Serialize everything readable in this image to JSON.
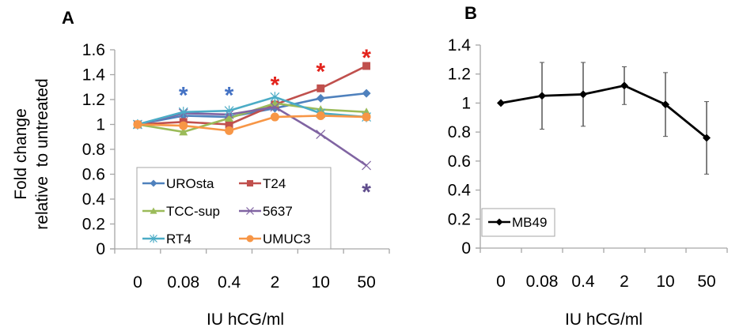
{
  "chart_data": [
    {
      "panel": "A",
      "type": "line",
      "title": "",
      "xlabel": "IU hCG/ml",
      "ylabel_lines": [
        "Fold change",
        "relative  to untreated"
      ],
      "categories": [
        "0",
        "0.08",
        "0.4",
        "2",
        "10",
        "50"
      ],
      "ylim": [
        0,
        1.6
      ],
      "yticks": [
        "0",
        "0.2",
        "0.4",
        "0.6",
        "0.8",
        "1",
        "1.2",
        "1.4",
        "1.6"
      ],
      "grid": false,
      "legend_position": "bottom-left inside",
      "series": [
        {
          "name": "UROsta",
          "color": "#4F81BD",
          "marker": "diamond",
          "values": [
            1.0,
            1.07,
            1.06,
            1.13,
            1.21,
            1.25
          ]
        },
        {
          "name": "T24",
          "color": "#C0504D",
          "marker": "square",
          "values": [
            1.0,
            1.02,
            1.0,
            1.16,
            1.29,
            1.47
          ]
        },
        {
          "name": "TCC-sup",
          "color": "#9BBB59",
          "marker": "triangle",
          "values": [
            1.0,
            0.94,
            1.05,
            1.17,
            1.12,
            1.1
          ]
        },
        {
          "name": "5637",
          "color": "#8064A2",
          "marker": "x",
          "values": [
            1.0,
            1.09,
            1.08,
            1.14,
            0.92,
            0.67
          ]
        },
        {
          "name": "RT4",
          "color": "#4BACC6",
          "marker": "star",
          "values": [
            1.0,
            1.1,
            1.11,
            1.22,
            1.09,
            1.06
          ]
        },
        {
          "name": "UMUC3",
          "color": "#F79646",
          "marker": "circle",
          "values": [
            1.0,
            0.99,
            0.95,
            1.06,
            1.07,
            1.06
          ]
        }
      ],
      "annotations": [
        {
          "text": "*",
          "category": "0.08",
          "y": 1.3,
          "color": "#4472C4"
        },
        {
          "text": "*",
          "category": "0.4",
          "y": 1.3,
          "color": "#4472C4"
        },
        {
          "text": "*",
          "category": "2",
          "y": 1.38,
          "color": "#E3231C"
        },
        {
          "text": "*",
          "category": "10",
          "y": 1.49,
          "color": "#E3231C"
        },
        {
          "text": "*",
          "category": "50",
          "y": 1.6,
          "color": "#E3231C"
        },
        {
          "text": "*",
          "category": "50",
          "y": 0.52,
          "color": "#5F4C8C"
        }
      ]
    },
    {
      "panel": "B",
      "type": "line",
      "title": "",
      "xlabel": "IU hCG/ml",
      "ylabel": "",
      "categories": [
        "0",
        "0.08",
        "0.4",
        "2",
        "10",
        "50"
      ],
      "ylim": [
        0,
        1.4
      ],
      "yticks": [
        "0",
        "0.2",
        "0.4",
        "0.6",
        "0.8",
        "1",
        "1.2",
        "1.4"
      ],
      "grid": false,
      "legend_position": "bottom-left inside",
      "series": [
        {
          "name": "MB49",
          "color": "#000000",
          "marker": "diamond",
          "values": [
            1.0,
            1.05,
            1.06,
            1.12,
            0.99,
            0.76
          ],
          "error": [
            0,
            0.23,
            0.22,
            0.13,
            0.22,
            0.25
          ]
        }
      ]
    }
  ]
}
